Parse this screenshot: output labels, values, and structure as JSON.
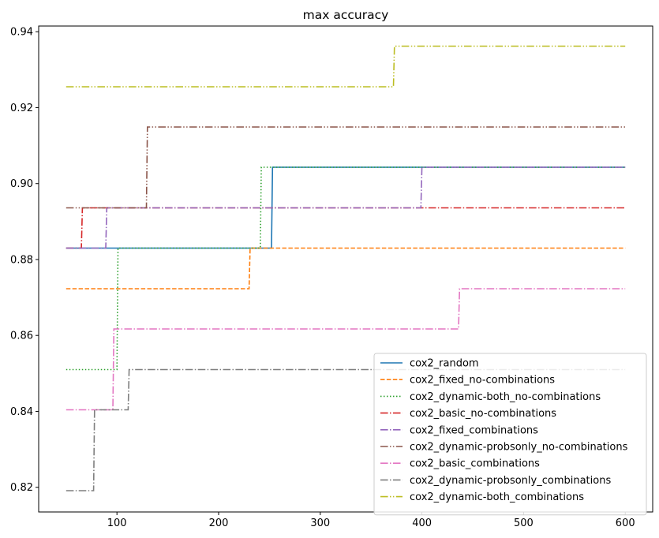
{
  "chart_data": {
    "type": "line",
    "title": "max accuracy",
    "xlabel": "",
    "ylabel": "",
    "xlim": [
      23,
      627
    ],
    "ylim": [
      0.8135,
      0.9415
    ],
    "xticks": [
      100,
      200,
      300,
      400,
      500,
      600
    ],
    "yticks": [
      0.82,
      0.84,
      0.86,
      0.88,
      0.9,
      0.92,
      0.94
    ],
    "ytick_labels": [
      "0.82",
      "0.84",
      "0.86",
      "0.88",
      "0.90",
      "0.92",
      "0.94"
    ],
    "grid": false,
    "legend_position": "lower-right",
    "series": [
      {
        "name": "cox2_random",
        "color": "#1f77b4",
        "dash": "solid",
        "points": [
          [
            50,
            0.883
          ],
          [
            252,
            0.883
          ],
          [
            253,
            0.9043
          ],
          [
            600,
            0.9043
          ]
        ]
      },
      {
        "name": "cox2_fixed_no-combinations",
        "color": "#ff7f0e",
        "dash": "dashed",
        "points": [
          [
            50,
            0.8723
          ],
          [
            230,
            0.8723
          ],
          [
            231,
            0.883
          ],
          [
            600,
            0.883
          ]
        ]
      },
      {
        "name": "cox2_dynamic-both_no-combinations",
        "color": "#2ca02c",
        "dash": "dotted",
        "points": [
          [
            50,
            0.851
          ],
          [
            100,
            0.851
          ],
          [
            101,
            0.883
          ],
          [
            241,
            0.883
          ],
          [
            242,
            0.9043
          ],
          [
            600,
            0.9043
          ]
        ]
      },
      {
        "name": "cox2_basic_no-combinations",
        "color": "#d62728",
        "dash": "dashdot",
        "points": [
          [
            50,
            0.883
          ],
          [
            65,
            0.883
          ],
          [
            66,
            0.8936
          ],
          [
            600,
            0.8936
          ]
        ]
      },
      {
        "name": "cox2_fixed_combinations",
        "color": "#9467bd",
        "dash": "dashdot",
        "points": [
          [
            50,
            0.883
          ],
          [
            89,
            0.883
          ],
          [
            90,
            0.8936
          ],
          [
            399,
            0.8936
          ],
          [
            400,
            0.9043
          ],
          [
            600,
            0.9043
          ]
        ]
      },
      {
        "name": "cox2_dynamic-probsonly_no-combinations",
        "color": "#8c564b",
        "dash": "dashdotdot",
        "points": [
          [
            50,
            0.8936
          ],
          [
            129,
            0.8936
          ],
          [
            130,
            0.9149
          ],
          [
            600,
            0.9149
          ]
        ]
      },
      {
        "name": "cox2_basic_combinations",
        "color": "#e377c2",
        "dash": "dashdot",
        "points": [
          [
            50,
            0.8404
          ],
          [
            96,
            0.8404
          ],
          [
            97,
            0.8617
          ],
          [
            436,
            0.8617
          ],
          [
            437,
            0.8723
          ],
          [
            600,
            0.8723
          ]
        ]
      },
      {
        "name": "cox2_dynamic-probsonly_combinations",
        "color": "#7f7f7f",
        "dash": "dashdot",
        "points": [
          [
            50,
            0.8191
          ],
          [
            77,
            0.8191
          ],
          [
            78,
            0.8404
          ],
          [
            111,
            0.8404
          ],
          [
            112,
            0.851
          ],
          [
            600,
            0.851
          ]
        ]
      },
      {
        "name": "cox2_dynamic-both_combinations",
        "color": "#bcbd22",
        "dash": "dashdotdot",
        "points": [
          [
            50,
            0.9255
          ],
          [
            372,
            0.9255
          ],
          [
            373,
            0.9362
          ],
          [
            600,
            0.9362
          ]
        ]
      }
    ]
  }
}
